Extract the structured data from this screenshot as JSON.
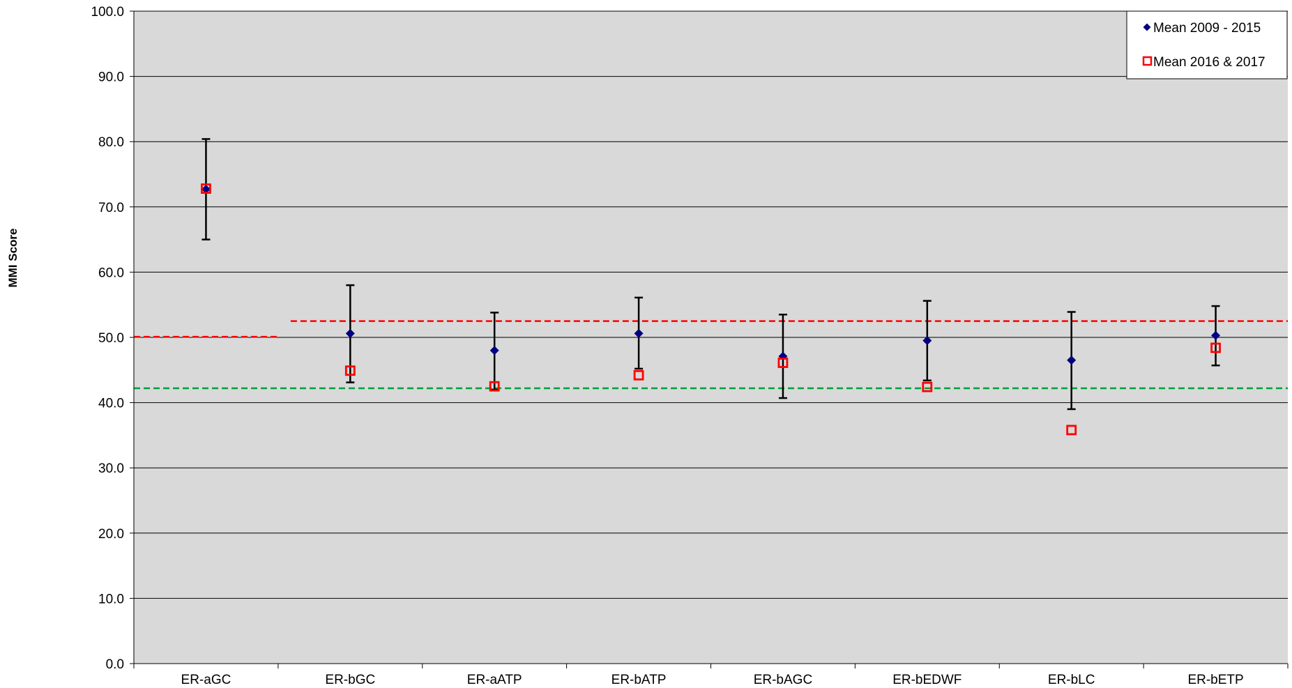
{
  "chart_data": {
    "type": "scatter",
    "title": "",
    "xlabel": "",
    "ylabel": "MMI Score",
    "ylim": [
      0,
      100
    ],
    "y_ticks": [
      "0.0",
      "10.0",
      "20.0",
      "30.0",
      "40.0",
      "50.0",
      "60.0",
      "70.0",
      "80.0",
      "90.0",
      "100.0"
    ],
    "grid": "horizontal",
    "legend_position": "top-right",
    "categories": [
      "ER-aGC",
      "ER-bGC",
      "ER-aATP",
      "ER-bATP",
      "ER-bAGC",
      "ER-bEDWF",
      "ER-bLC",
      "ER-bETP"
    ],
    "series": [
      {
        "name": "Mean 2009 - 2015",
        "marker": "diamond",
        "color": "#000080",
        "values": [
          72.7,
          50.6,
          48.0,
          50.6,
          47.1,
          49.5,
          46.5,
          50.3
        ],
        "error_low": [
          65.0,
          43.1,
          42.0,
          45.2,
          40.7,
          43.4,
          39.0,
          45.7
        ],
        "error_high": [
          80.4,
          58.0,
          53.8,
          56.1,
          53.5,
          55.6,
          53.9,
          54.8
        ]
      },
      {
        "name": "Mean 2016 & 2017",
        "marker": "open-square",
        "color": "#ff0000",
        "values": [
          72.8,
          44.9,
          42.5,
          44.2,
          46.1,
          42.4,
          35.8,
          48.4
        ]
      }
    ],
    "reference_lines": [
      {
        "color": "#ff0000",
        "style": "dashed",
        "value": 50.1,
        "from_category": 0,
        "to_category": 0
      },
      {
        "color": "#ff0000",
        "style": "dashed",
        "value": 52.5,
        "from_category": 1,
        "to_category": 7
      },
      {
        "color": "#00a03c",
        "style": "dashed",
        "value": 42.2,
        "from_category": 0,
        "to_category": 7
      }
    ],
    "colors": {
      "plot_background": "#d9d9d9",
      "gridline": "#000000",
      "error_bar": "#000000"
    }
  }
}
